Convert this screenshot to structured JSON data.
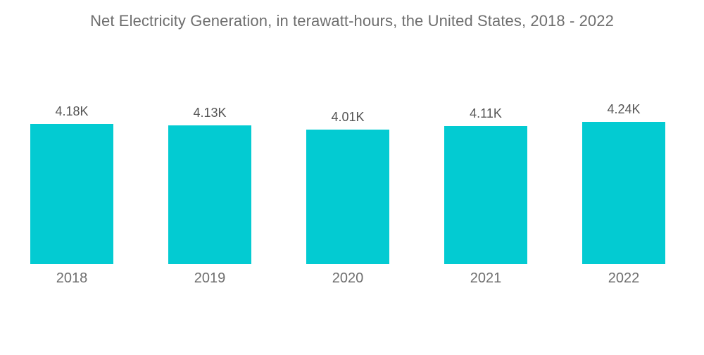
{
  "chart_data": {
    "type": "bar",
    "title": "Net Electricity Generation, in terawatt-hours, the United States, 2018 - 2022",
    "categories": [
      "2018",
      "2019",
      "2020",
      "2021",
      "2022"
    ],
    "values": [
      4180,
      4130,
      4010,
      4110,
      4240
    ],
    "value_labels": [
      "4.18K",
      "4.13K",
      "4.01K",
      "4.11K",
      "4.24K"
    ],
    "ylabel": "terawatt-hours",
    "ylim": [
      0,
      4240
    ],
    "grid": false,
    "legend": false,
    "colors": {
      "bar": "#03cbd2",
      "title_text": "#6e6e6e",
      "value_label_text": "#555555",
      "category_label_text": "#6e6e6e",
      "background": "#ffffff"
    }
  }
}
